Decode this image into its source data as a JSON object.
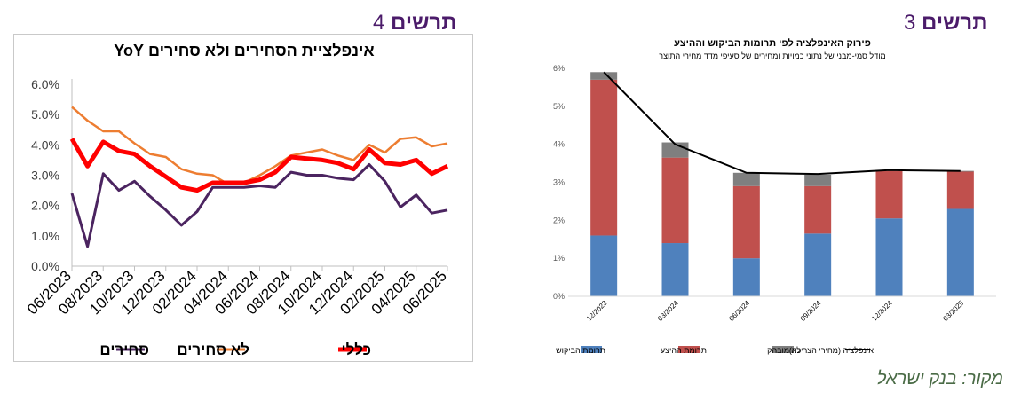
{
  "left_figure": {
    "heading_word": "תרשים",
    "heading_number": "4"
  },
  "right_figure": {
    "heading_word": "תרשים",
    "heading_number": "3"
  },
  "source_note": "מקור: בנק ישראל",
  "chart_data": [
    {
      "type": "line",
      "title": "אינפלציית הסחירים ולא סחירים YoY",
      "categories": [
        "06/2023",
        "07/2023",
        "08/2023",
        "09/2023",
        "10/2023",
        "11/2023",
        "12/2023",
        "01/2024",
        "02/2024",
        "03/2024",
        "04/2024",
        "05/2024",
        "06/2024",
        "07/2024",
        "08/2024",
        "09/2024",
        "10/2024",
        "11/2024",
        "12/2024",
        "01/2025",
        "02/2025",
        "03/2025",
        "04/2025",
        "05/2025",
        "06/2025"
      ],
      "x_tick_labels": [
        "06/2023",
        "08/2023",
        "10/2023",
        "12/2023",
        "02/2024",
        "04/2024",
        "06/2024",
        "08/2024",
        "10/2024",
        "12/2024",
        "02/2025",
        "04/2025",
        "06/2025"
      ],
      "y_tick_labels": [
        "0.0%",
        "1.0%",
        "2.0%",
        "3.0%",
        "4.0%",
        "5.0%",
        "6.0%"
      ],
      "ylim": [
        0,
        6
      ],
      "grid": false,
      "legend_position": "bottom",
      "series": [
        {
          "name": "סחירים",
          "color": "#4b2460",
          "values": [
            2.4,
            0.65,
            3.05,
            2.5,
            2.8,
            2.3,
            1.85,
            1.35,
            1.8,
            2.6,
            2.6,
            2.6,
            2.65,
            2.6,
            3.1,
            3.0,
            3.0,
            2.9,
            2.85,
            3.35,
            2.8,
            1.95,
            2.35,
            1.75,
            1.85
          ]
        },
        {
          "name": "לא סחירים",
          "color": "#ed7d31",
          "values": [
            5.25,
            4.8,
            4.45,
            4.45,
            4.05,
            3.7,
            3.6,
            3.2,
            3.05,
            3.0,
            2.7,
            2.75,
            3.0,
            3.3,
            3.65,
            3.75,
            3.85,
            3.65,
            3.5,
            4.0,
            3.75,
            4.2,
            4.25,
            3.95,
            4.05
          ]
        },
        {
          "name": "כללי",
          "color": "#ff0000",
          "values": [
            4.2,
            3.3,
            4.1,
            3.8,
            3.7,
            3.3,
            2.95,
            2.6,
            2.5,
            2.75,
            2.75,
            2.75,
            2.85,
            3.1,
            3.6,
            3.55,
            3.5,
            3.4,
            3.2,
            3.85,
            3.4,
            3.35,
            3.5,
            3.05,
            3.3
          ]
        }
      ]
    },
    {
      "type": "bar",
      "stacked": true,
      "title": "פירוק האינפלציה לפי תרומות הביקוש וההיצע",
      "subtitle": "מודל סמי-מבני של נתוני כמויות ומחירים של סעיפי מדד מחירי התוצר",
      "categories": [
        "12/2023",
        "03/2024",
        "06/2024",
        "09/2024",
        "12/2024",
        "03/2025"
      ],
      "y_tick_labels": [
        "0%",
        "1%",
        "2%",
        "3%",
        "4%",
        "5%",
        "6%"
      ],
      "ylim": [
        0,
        6
      ],
      "grid": false,
      "legend_position": "bottom",
      "series": [
        {
          "name": "תרומת הביקוש",
          "color": "#4f81bd",
          "values": [
            1.6,
            1.4,
            1.0,
            1.65,
            2.05,
            2.3
          ]
        },
        {
          "name": "תרומת ההיצע",
          "color": "#c0504d",
          "values": [
            4.1,
            2.25,
            1.9,
            1.25,
            1.25,
            0.98
          ]
        },
        {
          "name": "לא מובהק",
          "color": "#7f7f7f",
          "values": [
            0.2,
            0.4,
            0.35,
            0.3,
            0.0,
            0.02
          ]
        }
      ],
      "line_series": {
        "name": "אינפלציה (מחירי הצריכה)",
        "color": "#000000",
        "values": [
          5.9,
          4.0,
          3.25,
          3.22,
          3.32,
          3.3
        ]
      }
    }
  ]
}
